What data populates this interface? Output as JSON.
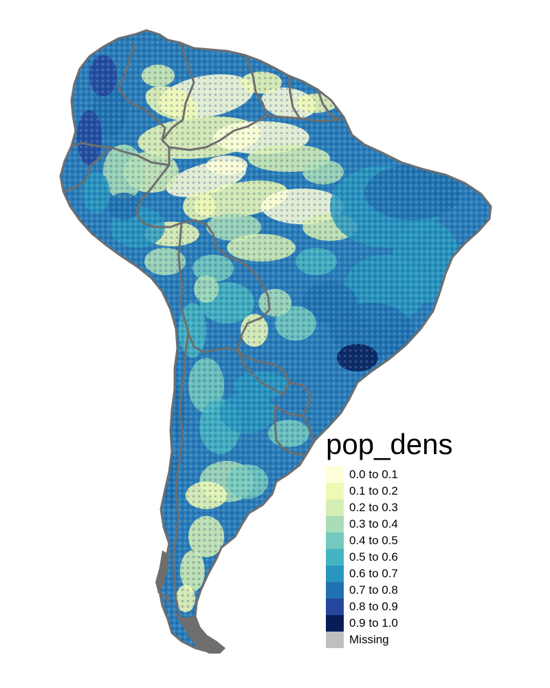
{
  "legend": {
    "title": "pop_dens",
    "items": [
      {
        "label": "0.0 to 0.1",
        "color": "#FFFFD9"
      },
      {
        "label": "0.1 to 0.2",
        "color": "#EFF9B4"
      },
      {
        "label": "0.2 to 0.3",
        "color": "#D5EEB3"
      },
      {
        "label": "0.3 to 0.4",
        "color": "#A9DDB7"
      },
      {
        "label": "0.4 to 0.5",
        "color": "#73C9BD"
      },
      {
        "label": "0.5 to 0.6",
        "color": "#45B4C2"
      },
      {
        "label": "0.6 to 0.7",
        "color": "#2897BF"
      },
      {
        "label": "0.7 to 0.8",
        "color": "#2172B1"
      },
      {
        "label": "0.8 to 0.9",
        "color": "#25479D"
      },
      {
        "label": "0.9 to 1.0",
        "color": "#081D58"
      },
      {
        "label": "Missing",
        "color": "#BFBFBF"
      }
    ]
  },
  "map": {
    "variable": "pop_dens",
    "region": "South America",
    "border_color": "#6E6E6E",
    "background": "#FFFFFF"
  }
}
